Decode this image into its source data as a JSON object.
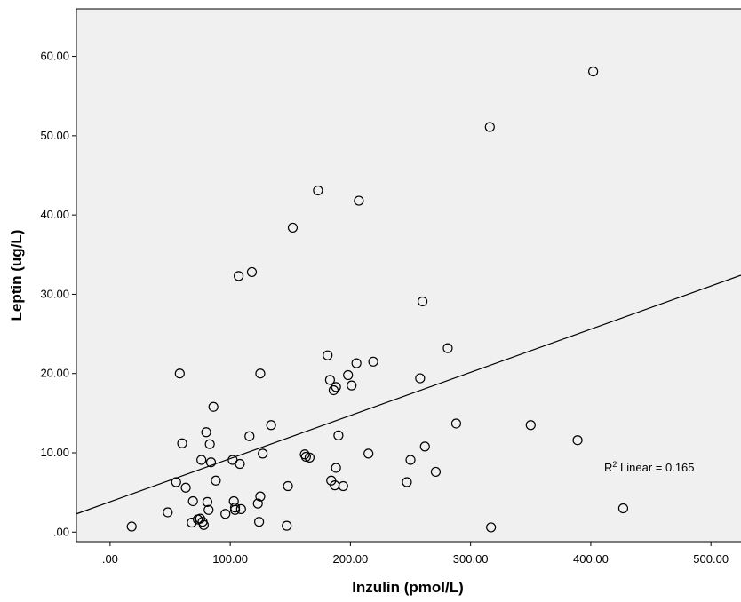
{
  "chart_data": {
    "type": "scatter",
    "xlabel": "Inzulin (pmol/L)",
    "ylabel": "Leptin (ug/L)",
    "xlim": [
      -28,
      525
    ],
    "ylim": [
      -1.2,
      66
    ],
    "x_ticks": [
      0,
      100,
      200,
      300,
      400,
      500
    ],
    "x_tick_labels": [
      ".00",
      "100.00",
      "200.00",
      "300.00",
      "400.00",
      "500.00"
    ],
    "y_ticks": [
      0,
      10,
      20,
      30,
      40,
      50,
      60
    ],
    "y_tick_labels": [
      ".00",
      "10.00",
      "20.00",
      "30.00",
      "40.00",
      "50.00",
      "60.00"
    ],
    "grid": false,
    "background_color": "#f0f0f0",
    "marker": "open-circle",
    "fit_line": {
      "type": "linear",
      "x": [
        -28,
        525
      ],
      "y": [
        2.3,
        32.4
      ]
    },
    "annotation": {
      "prefix": "R",
      "sup": "2",
      "text": " Linear = 0.165"
    },
    "points": [
      [
        18,
        0.7
      ],
      [
        48,
        2.5
      ],
      [
        55,
        6.3
      ],
      [
        58,
        20.0
      ],
      [
        60,
        11.2
      ],
      [
        63,
        5.6
      ],
      [
        68,
        1.2
      ],
      [
        69,
        3.9
      ],
      [
        73,
        1.6
      ],
      [
        75,
        1.7
      ],
      [
        76,
        9.1
      ],
      [
        77,
        1.3
      ],
      [
        78,
        0.9
      ],
      [
        80,
        12.6
      ],
      [
        81,
        3.8
      ],
      [
        82,
        2.8
      ],
      [
        83,
        11.1
      ],
      [
        84,
        8.8
      ],
      [
        86,
        15.8
      ],
      [
        88,
        6.5
      ],
      [
        96,
        2.3
      ],
      [
        102,
        9.1
      ],
      [
        103,
        3.9
      ],
      [
        104,
        2.8
      ],
      [
        104,
        3.1
      ],
      [
        107,
        32.3
      ],
      [
        108,
        8.6
      ],
      [
        109,
        2.9
      ],
      [
        116,
        12.1
      ],
      [
        118,
        32.8
      ],
      [
        123,
        3.6
      ],
      [
        124,
        1.3
      ],
      [
        125,
        20.0
      ],
      [
        125,
        4.5
      ],
      [
        127,
        9.9
      ],
      [
        134,
        13.5
      ],
      [
        147,
        0.8
      ],
      [
        148,
        5.8
      ],
      [
        152,
        38.4
      ],
      [
        162,
        9.8
      ],
      [
        163,
        9.5
      ],
      [
        166,
        9.4
      ],
      [
        173,
        43.1
      ],
      [
        181,
        22.3
      ],
      [
        183,
        19.2
      ],
      [
        184,
        6.5
      ],
      [
        186,
        17.9
      ],
      [
        187,
        5.9
      ],
      [
        188,
        18.3
      ],
      [
        188,
        8.1
      ],
      [
        190,
        12.2
      ],
      [
        194,
        5.8
      ],
      [
        198,
        19.8
      ],
      [
        201,
        18.5
      ],
      [
        205,
        21.3
      ],
      [
        207,
        41.8
      ],
      [
        215,
        9.9
      ],
      [
        219,
        21.5
      ],
      [
        247,
        6.3
      ],
      [
        250,
        9.1
      ],
      [
        258,
        19.4
      ],
      [
        260,
        29.1
      ],
      [
        262,
        10.8
      ],
      [
        271,
        7.6
      ],
      [
        281,
        23.2
      ],
      [
        288,
        13.7
      ],
      [
        316,
        51.1
      ],
      [
        317,
        0.6
      ],
      [
        350,
        13.5
      ],
      [
        389,
        11.6
      ],
      [
        402,
        58.1
      ],
      [
        427,
        3.0
      ]
    ]
  }
}
